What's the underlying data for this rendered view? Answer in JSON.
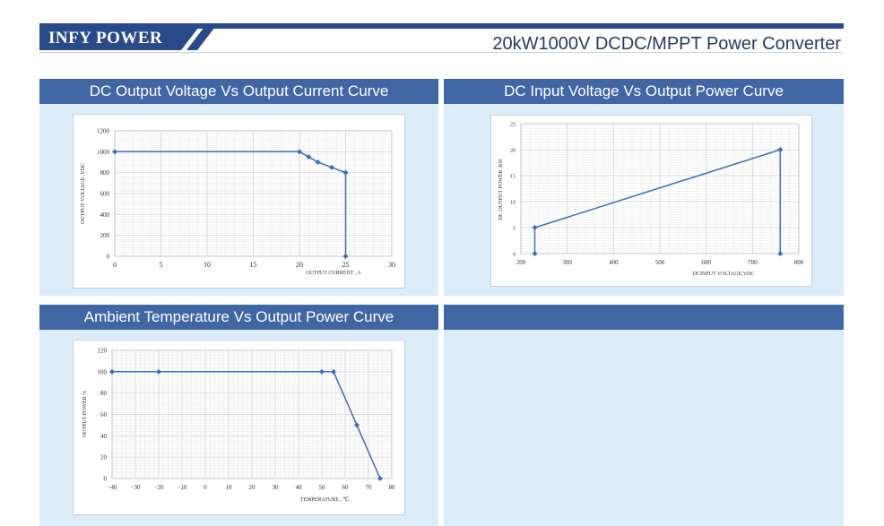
{
  "header": {
    "brand": "INFY POWER",
    "subtitle": "20kW1000V DCDC/MPPT Power Converter"
  },
  "panels": [
    {
      "title": "DC Output Voltage Vs Output Current Curve"
    },
    {
      "title": "DC Input Voltage Vs Output Power Curve"
    },
    {
      "title": "Ambient Temperature Vs Output Power Curve"
    },
    {
      "title": ""
    }
  ],
  "colors": {
    "header_bar": "#2a4a8a",
    "panel_head": "#4066a4",
    "panel_bg": "#dcecf8",
    "series": "#3e6fae",
    "grid": "#d9d9d9"
  },
  "chart_data": [
    {
      "type": "line",
      "title": "DC Output Voltage Vs Output Current Curve",
      "xlabel": "OUTPUT CURRENT , A",
      "ylabel": "OUTPUT VOLTAGE ,VDC",
      "xlim": [
        0,
        30
      ],
      "ylim": [
        0,
        1200
      ],
      "xticks": [
        0,
        5,
        10,
        15,
        20,
        25,
        30
      ],
      "yticks": [
        0,
        200,
        400,
        600,
        800,
        1000,
        1200
      ],
      "grid": true,
      "series": [
        {
          "x": [
            0,
            20,
            21,
            22,
            23.5,
            25,
            25
          ],
          "y": [
            1000,
            1000,
            950,
            900,
            850,
            800,
            0
          ]
        }
      ]
    },
    {
      "type": "line",
      "title": "DC Input Voltage Vs Output Power Curve",
      "xlabel": "DCINPUT VOLTAGE,VDC",
      "ylabel": "DC OUTPUT POWER ,KW",
      "xlim": [
        200,
        800
      ],
      "ylim": [
        0,
        25
      ],
      "xticks": [
        200,
        300,
        400,
        500,
        600,
        700,
        800
      ],
      "yticks": [
        0,
        5,
        10,
        15,
        20,
        25
      ],
      "grid": true,
      "series": [
        {
          "x": [
            230,
            230,
            760,
            760
          ],
          "y": [
            0,
            5,
            20,
            0
          ]
        }
      ]
    },
    {
      "type": "line",
      "title": "Ambient Temperature Vs Output Power Curve",
      "xlabel": "TEMPERATURE , ℃",
      "ylabel": "OUTPUT POWER %",
      "xlim": [
        -40,
        80
      ],
      "ylim": [
        0,
        120
      ],
      "xticks": [
        -40,
        -30,
        -20,
        -10,
        0,
        10,
        20,
        30,
        40,
        50,
        60,
        70,
        80
      ],
      "yticks": [
        0,
        20,
        40,
        60,
        80,
        100,
        120
      ],
      "grid": true,
      "series": [
        {
          "x": [
            -40,
            -20,
            50,
            55,
            65,
            75
          ],
          "y": [
            100,
            100,
            100,
            100,
            50,
            0
          ]
        }
      ]
    }
  ]
}
